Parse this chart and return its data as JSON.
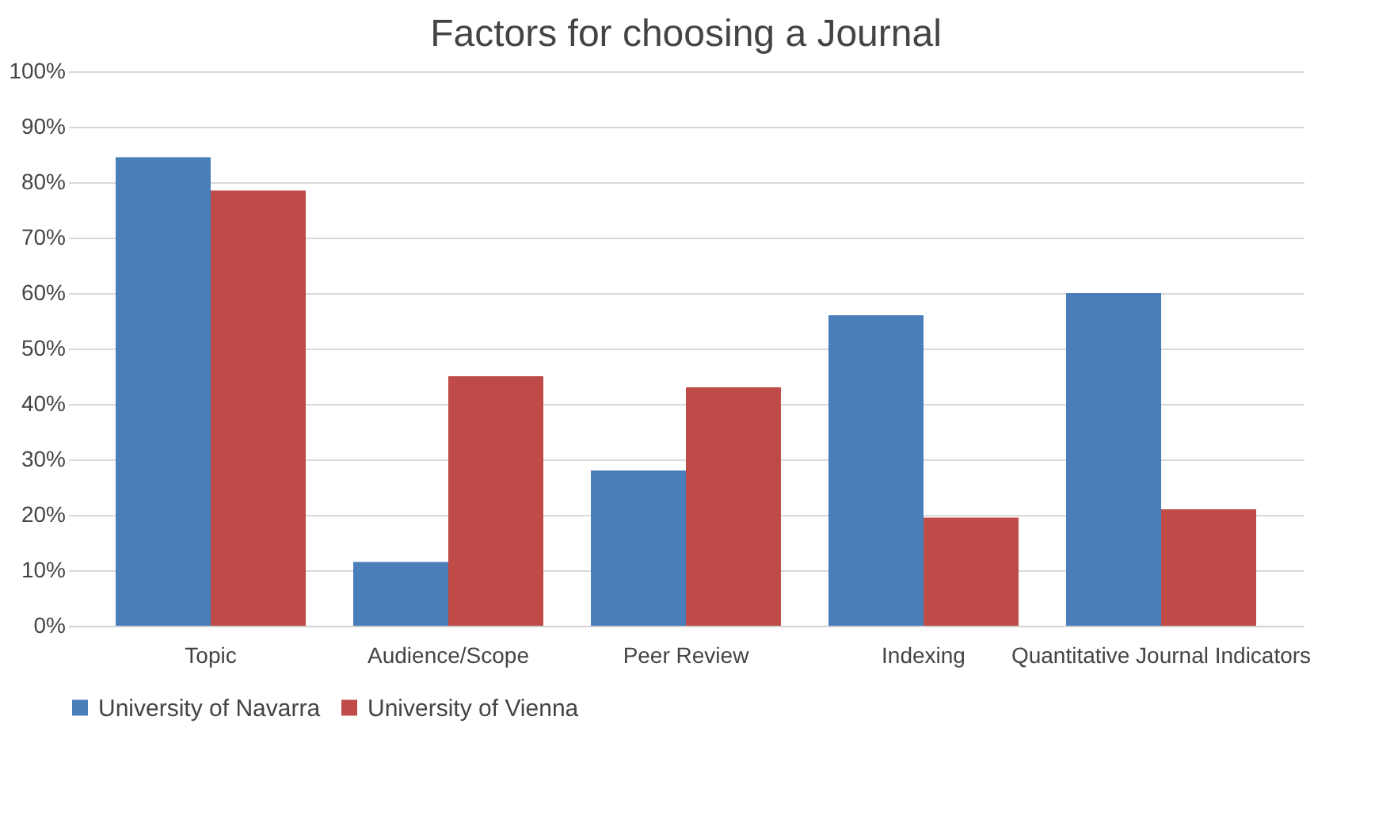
{
  "chart_data": {
    "type": "bar",
    "title": "Factors for choosing a Journal",
    "categories": [
      "Topic",
      "Audience/Scope",
      "Peer Review",
      "Indexing",
      "Quantitative Journal Indicators"
    ],
    "series": [
      {
        "name": "University of Navarra",
        "color": "#4a7ebb",
        "values": [
          84.5,
          11.5,
          28,
          56,
          60
        ]
      },
      {
        "name": "University of Vienna",
        "color": "#be4b48",
        "values": [
          78.5,
          45,
          43,
          19.5,
          21
        ]
      }
    ],
    "ylim": [
      0,
      100
    ],
    "yticks": [
      {
        "value": 0,
        "label": "0%"
      },
      {
        "value": 10,
        "label": "10%"
      },
      {
        "value": 20,
        "label": "20%"
      },
      {
        "value": 30,
        "label": "30%"
      },
      {
        "value": 40,
        "label": "40%"
      },
      {
        "value": 50,
        "label": "50%"
      },
      {
        "value": 60,
        "label": "60%"
      },
      {
        "value": 70,
        "label": "70%"
      },
      {
        "value": 80,
        "label": "80%"
      },
      {
        "value": 90,
        "label": "90%"
      },
      {
        "value": 100,
        "label": "100%"
      }
    ],
    "grid": "y",
    "legend": "bottom"
  }
}
